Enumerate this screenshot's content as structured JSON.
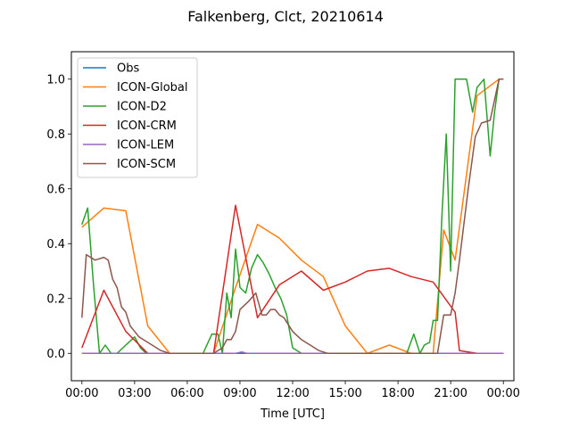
{
  "chart_data": {
    "type": "line",
    "title": "Falkenberg, Clct, 20210614",
    "xlabel": "Time [UTC]",
    "ylabel": "",
    "xlim": [
      -0.6,
      24.6
    ],
    "ylim": [
      -0.1,
      1.1
    ],
    "x_ticks": [
      0,
      3,
      6,
      9,
      12,
      15,
      18,
      21,
      24
    ],
    "x_tick_labels": [
      "00:00",
      "03:00",
      "06:00",
      "09:00",
      "12:00",
      "15:00",
      "18:00",
      "21:00",
      "00:00"
    ],
    "y_ticks": [
      0.0,
      0.2,
      0.4,
      0.6,
      0.8,
      1.0
    ],
    "y_tick_labels": [
      "0.0",
      "0.2",
      "0.4",
      "0.6",
      "0.8",
      "1.0"
    ],
    "grid": false,
    "legend_position": "top-left",
    "series": [
      {
        "name": "Obs",
        "color": "#1f77b4",
        "points": [
          [
            0,
            0.0
          ],
          [
            24,
            0.0
          ]
        ]
      },
      {
        "name": "ICON-Global",
        "color": "#ff7f0e",
        "points": [
          [
            0,
            0.46
          ],
          [
            1.25,
            0.53
          ],
          [
            2.5,
            0.52
          ],
          [
            3.75,
            0.1
          ],
          [
            5,
            0.0
          ],
          [
            6.25,
            0.0
          ],
          [
            7.5,
            0.0
          ],
          [
            8.75,
            0.24
          ],
          [
            10,
            0.47
          ],
          [
            11.25,
            0.42
          ],
          [
            12.5,
            0.34
          ],
          [
            13.75,
            0.28
          ],
          [
            15,
            0.1
          ],
          [
            16.25,
            0.0
          ],
          [
            17.5,
            0.03
          ],
          [
            18.75,
            0.0
          ],
          [
            20,
            0.0
          ],
          [
            20.6,
            0.45
          ],
          [
            21.25,
            0.34
          ],
          [
            22.5,
            0.94
          ],
          [
            23.75,
            1.0
          ],
          [
            24,
            1.0
          ]
        ]
      },
      {
        "name": "ICON-D2",
        "color": "#2ca02c",
        "points": [
          [
            0,
            0.47
          ],
          [
            0.33,
            0.53
          ],
          [
            0.66,
            0.25
          ],
          [
            1.0,
            0.0
          ],
          [
            1.33,
            0.03
          ],
          [
            1.66,
            0.0
          ],
          [
            2.0,
            0.0
          ],
          [
            2.5,
            0.03
          ],
          [
            3.0,
            0.06
          ],
          [
            3.33,
            0.02
          ],
          [
            3.66,
            0.0
          ],
          [
            6.9,
            0.0
          ],
          [
            7.4,
            0.07
          ],
          [
            7.75,
            0.07
          ],
          [
            8.0,
            0.0
          ],
          [
            8.25,
            0.22
          ],
          [
            8.5,
            0.13
          ],
          [
            8.75,
            0.38
          ],
          [
            9.0,
            0.24
          ],
          [
            9.33,
            0.22
          ],
          [
            9.66,
            0.31
          ],
          [
            10.0,
            0.36
          ],
          [
            10.33,
            0.33
          ],
          [
            10.66,
            0.29
          ],
          [
            11.0,
            0.24
          ],
          [
            11.33,
            0.2
          ],
          [
            11.66,
            0.14
          ],
          [
            12.0,
            0.02
          ],
          [
            12.5,
            0.0
          ],
          [
            18.5,
            0.0
          ],
          [
            18.9,
            0.07
          ],
          [
            19.25,
            0.0
          ],
          [
            19.5,
            0.03
          ],
          [
            19.8,
            0.04
          ],
          [
            20.0,
            0.12
          ],
          [
            20.25,
            0.12
          ],
          [
            20.5,
            0.5
          ],
          [
            20.75,
            0.8
          ],
          [
            21.0,
            0.3
          ],
          [
            21.25,
            1.0
          ],
          [
            21.9,
            1.0
          ],
          [
            22.25,
            0.88
          ],
          [
            22.5,
            0.97
          ],
          [
            22.9,
            1.0
          ],
          [
            23.25,
            0.72
          ],
          [
            23.5,
            0.88
          ],
          [
            23.75,
            1.0
          ],
          [
            24,
            1.0
          ]
        ]
      },
      {
        "name": "ICON-CRM",
        "color": "#d62728",
        "points": [
          [
            0,
            0.02
          ],
          [
            1.25,
            0.23
          ],
          [
            2.5,
            0.08
          ],
          [
            3.75,
            0.0
          ],
          [
            5,
            0.0
          ],
          [
            6.25,
            0.0
          ],
          [
            7.5,
            0.0
          ],
          [
            8.75,
            0.54
          ],
          [
            10,
            0.13
          ],
          [
            11.25,
            0.25
          ],
          [
            12.5,
            0.3
          ],
          [
            13.75,
            0.23
          ],
          [
            15,
            0.26
          ],
          [
            16.25,
            0.3
          ],
          [
            17.5,
            0.31
          ],
          [
            18.75,
            0.28
          ],
          [
            20,
            0.26
          ],
          [
            21.25,
            0.15
          ],
          [
            21.5,
            0.01
          ],
          [
            22.5,
            0.0
          ],
          [
            24,
            0.0
          ]
        ]
      },
      {
        "name": "ICON-LEM",
        "color": "#9467bd",
        "points": [
          [
            0,
            0.0
          ],
          [
            7.5,
            0.0
          ],
          [
            8.75,
            0.0
          ],
          [
            9.1,
            0.005
          ],
          [
            9.4,
            0.0
          ],
          [
            24,
            0.0
          ]
        ]
      },
      {
        "name": "ICON-SCM",
        "color": "#8c564b",
        "points": [
          [
            0,
            0.13
          ],
          [
            0.25,
            0.36
          ],
          [
            0.75,
            0.34
          ],
          [
            1.25,
            0.35
          ],
          [
            1.5,
            0.34
          ],
          [
            1.75,
            0.27
          ],
          [
            2.0,
            0.24
          ],
          [
            2.25,
            0.17
          ],
          [
            2.5,
            0.15
          ],
          [
            2.75,
            0.1
          ],
          [
            3.0,
            0.08
          ],
          [
            3.25,
            0.06
          ],
          [
            3.5,
            0.05
          ],
          [
            4.0,
            0.03
          ],
          [
            4.5,
            0.01
          ],
          [
            5.0,
            0.0
          ],
          [
            7.5,
            0.0
          ],
          [
            8.0,
            0.02
          ],
          [
            8.25,
            0.05
          ],
          [
            8.5,
            0.05
          ],
          [
            8.75,
            0.08
          ],
          [
            9.0,
            0.16
          ],
          [
            9.5,
            0.19
          ],
          [
            9.9,
            0.22
          ],
          [
            10.25,
            0.14
          ],
          [
            10.5,
            0.14
          ],
          [
            10.75,
            0.16
          ],
          [
            11.0,
            0.16
          ],
          [
            11.25,
            0.14
          ],
          [
            11.5,
            0.13
          ],
          [
            12.0,
            0.08
          ],
          [
            12.5,
            0.05
          ],
          [
            13.0,
            0.03
          ],
          [
            13.5,
            0.01
          ],
          [
            14.0,
            0.0
          ],
          [
            18.75,
            0.0
          ],
          [
            20.25,
            0.0
          ],
          [
            20.6,
            0.14
          ],
          [
            21.0,
            0.14
          ],
          [
            21.25,
            0.22
          ],
          [
            21.5,
            0.34
          ],
          [
            22.0,
            0.6
          ],
          [
            22.4,
            0.79
          ],
          [
            22.75,
            0.84
          ],
          [
            23.25,
            0.85
          ],
          [
            23.75,
            1.0
          ],
          [
            24,
            1.0
          ]
        ]
      }
    ]
  }
}
